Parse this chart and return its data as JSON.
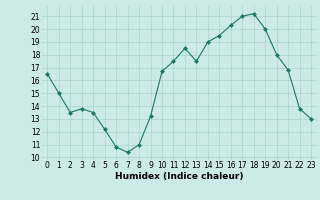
{
  "x": [
    0,
    1,
    2,
    3,
    4,
    5,
    6,
    7,
    8,
    9,
    10,
    11,
    12,
    13,
    14,
    15,
    16,
    17,
    18,
    19,
    20,
    21,
    22,
    23
  ],
  "y": [
    16.5,
    15.0,
    13.5,
    13.8,
    13.5,
    12.2,
    10.8,
    10.4,
    11.0,
    13.2,
    16.7,
    17.5,
    18.5,
    17.5,
    19.0,
    19.5,
    20.3,
    21.0,
    21.2,
    20.0,
    18.0,
    16.8,
    13.8,
    13.0
  ],
  "line_color": "#1a7a6a",
  "marker": "D",
  "marker_size": 2,
  "xlabel": "Humidex (Indice chaleur)",
  "xlim": [
    -0.5,
    23.5
  ],
  "ylim": [
    9.8,
    21.8
  ],
  "yticks": [
    10,
    11,
    12,
    13,
    14,
    15,
    16,
    17,
    18,
    19,
    20,
    21
  ],
  "xticks": [
    0,
    1,
    2,
    3,
    4,
    5,
    6,
    7,
    8,
    9,
    10,
    11,
    12,
    13,
    14,
    15,
    16,
    17,
    18,
    19,
    20,
    21,
    22,
    23
  ],
  "bg_color": "#cceae7",
  "grid_color": "#aad4d0",
  "tick_fontsize": 5.5,
  "label_fontsize": 6.5
}
